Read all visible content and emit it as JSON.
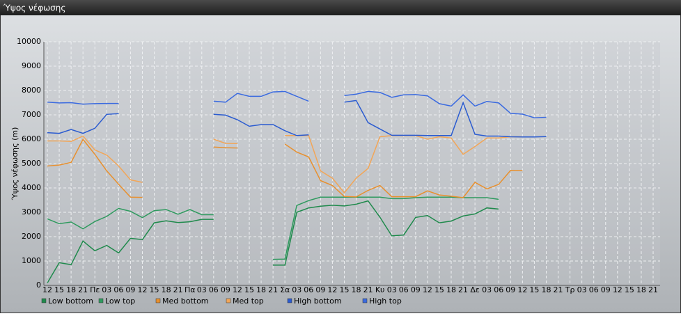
{
  "chart_data": {
    "type": "line",
    "title": "Ύψος νέφωσης",
    "y_label": "Ύψος νέφωσης (m)",
    "categories": [
      "12",
      "15",
      "18",
      "21",
      "Πε",
      "03",
      "06",
      "09",
      "12",
      "15",
      "18",
      "21",
      "Πα",
      "03",
      "06",
      "09",
      "12",
      "15",
      "18",
      "21",
      "Σα",
      "03",
      "06",
      "09",
      "12",
      "15",
      "18",
      "21",
      "Κυ",
      "03",
      "06",
      "09",
      "12",
      "15",
      "18",
      "21",
      "Δε",
      "03",
      "06",
      "09",
      "12",
      "15",
      "18",
      "21",
      "Τρ",
      "03",
      "06",
      "09",
      "12",
      "15",
      "18",
      "21"
    ],
    "ylim": [
      0,
      10000
    ],
    "yticks": [
      0,
      1000,
      2000,
      3000,
      4000,
      5000,
      6000,
      7000,
      8000,
      9000,
      10000
    ],
    "grid": true,
    "series": [
      {
        "name": "Low bottom",
        "color": "#1f8a4c",
        "values": [
          100,
          930,
          850,
          1820,
          1420,
          1640,
          1330,
          1930,
          1880,
          2570,
          2650,
          2580,
          2610,
          2710,
          2710,
          null,
          null,
          null,
          null,
          830,
          830,
          3000,
          3180,
          3250,
          3290,
          3260,
          3330,
          3470,
          2800,
          2030,
          2070,
          2790,
          2870,
          2570,
          2640,
          2850,
          2930,
          3180,
          3130,
          null,
          null,
          null,
          null,
          null,
          null,
          null,
          null,
          null,
          null,
          null,
          null,
          null
        ]
      },
      {
        "name": "Low top",
        "color": "#2e9a5e",
        "values": [
          2730,
          2530,
          2600,
          2320,
          2620,
          2830,
          3160,
          3040,
          2780,
          3070,
          3110,
          2920,
          3110,
          2900,
          2900,
          null,
          null,
          null,
          null,
          1070,
          1080,
          3280,
          3480,
          3620,
          3620,
          3620,
          3620,
          3620,
          3620,
          3560,
          3560,
          3600,
          3620,
          3620,
          3620,
          3600,
          3600,
          3600,
          3530,
          null,
          null,
          null,
          null,
          null,
          null,
          null,
          null,
          null,
          null,
          null,
          null,
          null
        ]
      },
      {
        "name": "Med bottom",
        "color": "#e8902e",
        "values": [
          4900,
          4940,
          5050,
          5990,
          5380,
          4700,
          4150,
          3620,
          3610,
          null,
          null,
          null,
          null,
          null,
          5680,
          5650,
          5640,
          null,
          null,
          null,
          5800,
          5470,
          5270,
          4300,
          4100,
          3650,
          3630,
          3900,
          4100,
          3640,
          3640,
          3640,
          3880,
          3710,
          3660,
          3600,
          4230,
          3960,
          4150,
          4720,
          4710,
          null,
          null,
          null,
          null,
          null,
          null,
          null,
          null,
          null,
          null,
          null
        ]
      },
      {
        "name": "Med top",
        "color": "#f2a658",
        "values": [
          5930,
          5930,
          5910,
          6130,
          5560,
          5350,
          4900,
          4330,
          4230,
          null,
          null,
          null,
          null,
          null,
          6000,
          5830,
          5820,
          null,
          null,
          null,
          6150,
          6150,
          6150,
          4700,
          4400,
          3800,
          4400,
          4800,
          6100,
          6150,
          6150,
          6150,
          6000,
          6100,
          6050,
          5380,
          5700,
          6050,
          6050,
          6100,
          6100,
          null,
          null,
          null,
          null,
          null,
          null,
          null,
          null,
          null,
          null,
          null
        ]
      },
      {
        "name": "High bottom",
        "color": "#2a5bd0",
        "values": [
          6270,
          6240,
          6400,
          6240,
          6450,
          7020,
          7050,
          null,
          null,
          null,
          null,
          null,
          null,
          null,
          7020,
          6990,
          6800,
          6530,
          6600,
          6600,
          6350,
          6150,
          6180,
          null,
          null,
          7520,
          7590,
          6680,
          6420,
          6160,
          6160,
          6160,
          6150,
          6150,
          6150,
          7500,
          6200,
          6130,
          6130,
          6100,
          6090,
          6090,
          6110,
          null,
          null,
          null,
          null,
          null,
          null,
          null,
          null,
          null
        ]
      },
      {
        "name": "High top",
        "color": "#3a6ae0",
        "values": [
          7520,
          7490,
          7500,
          7440,
          7460,
          7470,
          7470,
          null,
          null,
          null,
          null,
          null,
          null,
          null,
          7560,
          7520,
          7880,
          7760,
          7760,
          7940,
          7960,
          7760,
          7560,
          null,
          null,
          7790,
          7850,
          7960,
          7920,
          7720,
          7820,
          7830,
          7780,
          7460,
          7360,
          7820,
          7360,
          7550,
          7490,
          7060,
          7030,
          6880,
          6900,
          null,
          null,
          null,
          null,
          null,
          null,
          null,
          null,
          null
        ]
      }
    ]
  }
}
